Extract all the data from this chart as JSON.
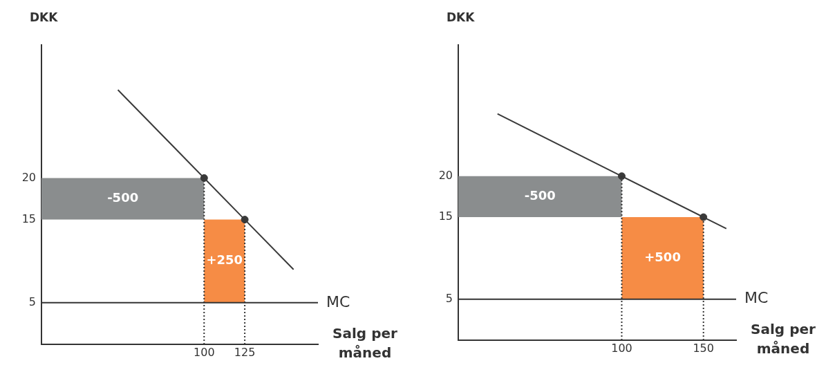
{
  "chart_data": [
    {
      "type": "line",
      "xlabel": "Salg per måned",
      "ylabel": "DKK",
      "xlim": [
        0,
        170
      ],
      "ylim": [
        0,
        36
      ],
      "xticks": [
        100,
        125
      ],
      "yticks": [
        5,
        15,
        20
      ],
      "grid": false,
      "marker": "none",
      "ref_lines": [
        {
          "axis": "y",
          "value": 5,
          "label": "MC",
          "color": "#333333"
        }
      ],
      "annotations": [
        "-500",
        "+250"
      ],
      "series": [
        {
          "type": "area",
          "x": [
            0,
            100,
            100,
            0
          ],
          "values": [
            20,
            20,
            15,
            15
          ],
          "color": "#8a8d8e"
        },
        {
          "type": "area",
          "x": [
            100,
            125,
            125,
            100
          ],
          "values": [
            15,
            15,
            5,
            5
          ],
          "color": "#f68c45"
        },
        {
          "type": "line",
          "x": [
            100,
            100
          ],
          "values": [
            0,
            20
          ],
          "color": "#333333",
          "line_style": "dotted"
        },
        {
          "type": "line",
          "x": [
            125,
            125
          ],
          "values": [
            0,
            15
          ],
          "color": "#333333",
          "line_style": "dotted"
        },
        {
          "type": "line",
          "x": [
            47,
            100,
            125,
            155
          ],
          "values": [
            30.6,
            20,
            15,
            9
          ],
          "color": "#3a3a3a",
          "line_style": "solid"
        },
        {
          "type": "scatter",
          "x": [
            100,
            125
          ],
          "values": [
            20,
            15
          ],
          "color": "#3a3a3a",
          "marker": "circle"
        }
      ]
    },
    {
      "type": "line",
      "xlabel": "Salg per måned",
      "ylabel": "DKK",
      "xlim": [
        0,
        170
      ],
      "ylim": [
        0,
        36
      ],
      "xticks": [
        100,
        150
      ],
      "yticks": [
        5,
        15,
        20
      ],
      "grid": false,
      "marker": "none",
      "ref_lines": [
        {
          "axis": "y",
          "value": 5,
          "label": "MC",
          "color": "#333333"
        }
      ],
      "annotations": [
        "-500",
        "+500"
      ],
      "series": [
        {
          "type": "area",
          "x": [
            0,
            100,
            100,
            0
          ],
          "values": [
            20,
            20,
            15,
            15
          ],
          "color": "#8a8d8e"
        },
        {
          "type": "area",
          "x": [
            100,
            150,
            150,
            100
          ],
          "values": [
            15,
            15,
            5,
            5
          ],
          "color": "#f68c45"
        },
        {
          "type": "line",
          "x": [
            100,
            100
          ],
          "values": [
            0,
            20
          ],
          "color": "#333333",
          "line_style": "dotted"
        },
        {
          "type": "line",
          "x": [
            150,
            150
          ],
          "values": [
            0,
            15
          ],
          "color": "#333333",
          "line_style": "dotted"
        },
        {
          "type": "line",
          "x": [
            24,
            100,
            150,
            164
          ],
          "values": [
            27.6,
            20,
            15,
            13.6
          ],
          "color": "#3a3a3a",
          "line_style": "solid"
        },
        {
          "type": "scatter",
          "x": [
            100,
            150
          ],
          "values": [
            20,
            15
          ],
          "color": "#3a3a3a",
          "marker": "circle"
        }
      ]
    }
  ]
}
